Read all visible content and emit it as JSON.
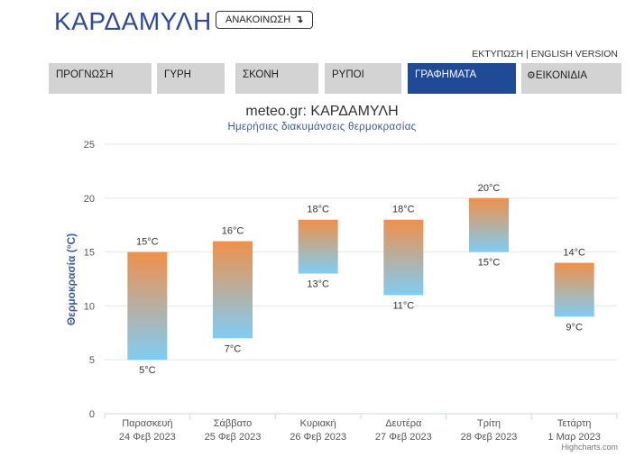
{
  "header": {
    "title": "ΚΑΡΔΑΜΥΛΗ",
    "notice_label": "ΑΝΑΚΟΙΝΩΣΗ",
    "notice_icon": "↴"
  },
  "toplinks": {
    "print": "ΕΚΤΥΠΩΣΗ",
    "separator": "|",
    "english": "ENGLISH VERSION"
  },
  "tabs": [
    {
      "label": "ΠΡΟΓΝΩΣΗ",
      "active": false
    },
    {
      "label": "ΓΥΡΗ",
      "active": false
    },
    {
      "label": "ΣΚΟΝΗ",
      "active": false
    },
    {
      "label": "ΡΥΠΟΙ",
      "active": false
    },
    {
      "label": "ΓΡΑΦΗΜΑΤΑ",
      "active": true
    },
    {
      "label": "ΕΙΚΟΝΙΔΙΑ",
      "active": false,
      "icon": "gear-icon"
    }
  ],
  "chart_data": {
    "type": "bar",
    "title": "meteo.gr: ΚΑΡΔΑΜΥΛΗ",
    "subtitle": "Ημερήσιες διακυμάνσεις θερμοκρασίας",
    "ylabel": "Θερμοκρασία (°C)",
    "ylim": [
      0,
      25
    ],
    "yticks": [
      0,
      5,
      10,
      15,
      20,
      25
    ],
    "categories": [
      [
        "Παρασκευή",
        "24 Φεβ 2023"
      ],
      [
        "Σάββατο",
        "25 Φεβ 2023"
      ],
      [
        "Κυριακή",
        "26 Φεβ 2023"
      ],
      [
        "Δευτέρα",
        "27 Φεβ 2023"
      ],
      [
        "Τρίτη",
        "28 Φεβ 2023"
      ],
      [
        "Τετάρτη",
        "1 Μαρ 2023"
      ]
    ],
    "series": [
      {
        "low": [
          5,
          7,
          13,
          11,
          15,
          9
        ],
        "high": [
          15,
          16,
          18,
          18,
          20,
          14
        ]
      }
    ],
    "low_labels": [
      "5°C",
      "7°C",
      "13°C",
      "11°C",
      "15°C",
      "9°C"
    ],
    "high_labels": [
      "15°C",
      "16°C",
      "18°C",
      "18°C",
      "20°C",
      "14°C"
    ],
    "colors": {
      "high": "#f0904a",
      "low": "#7fcdf5",
      "grid": "#e6e6e6",
      "axis_label": "#3a5a9a"
    },
    "grid": true,
    "credits": "Highcharts.com"
  }
}
